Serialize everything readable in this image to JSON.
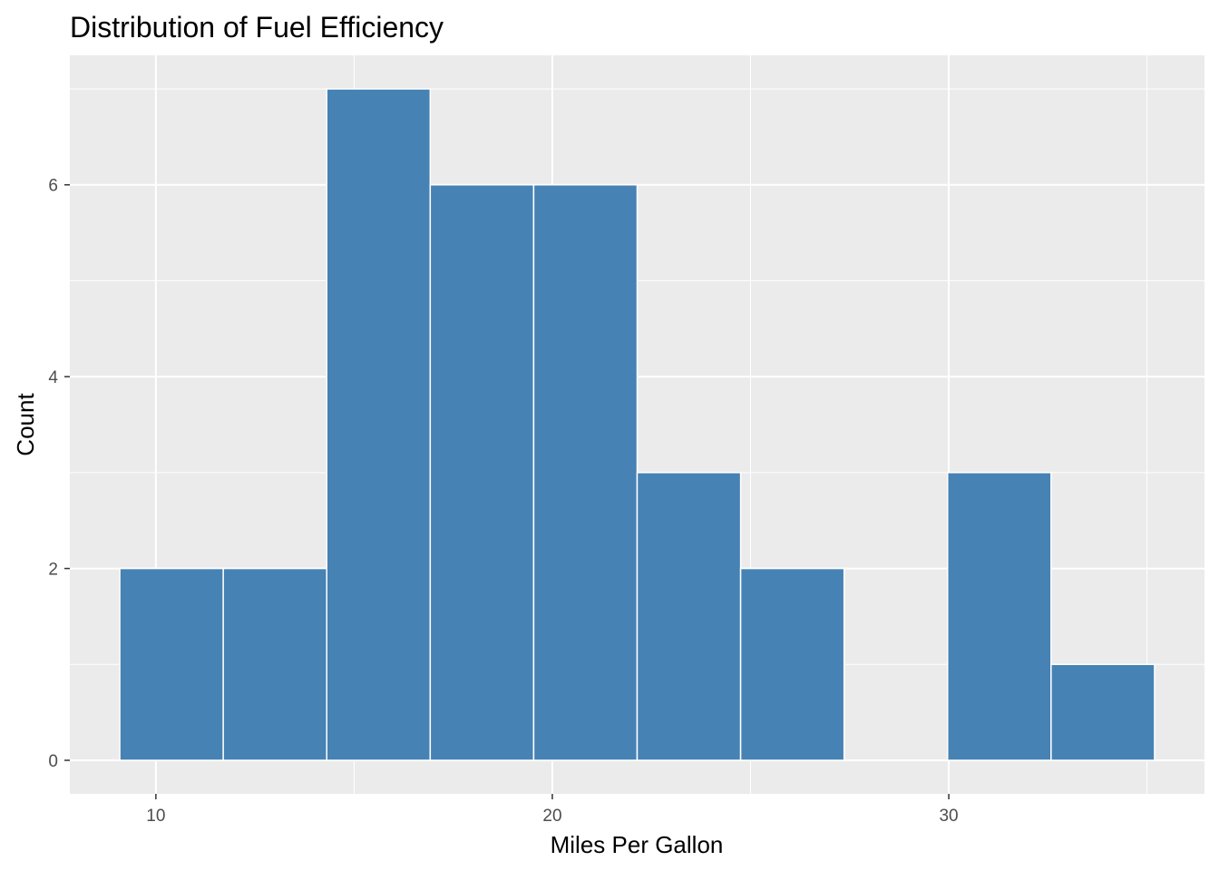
{
  "chart_data": {
    "type": "bar",
    "title": "Distribution of Fuel Efficiency",
    "xlabel": "Miles Per Gallon",
    "ylabel": "Count",
    "bins": [
      {
        "start": 9.09,
        "end": 11.7,
        "count": 2
      },
      {
        "start": 11.7,
        "end": 14.31,
        "count": 2
      },
      {
        "start": 14.31,
        "end": 16.92,
        "count": 7
      },
      {
        "start": 16.92,
        "end": 19.53,
        "count": 6
      },
      {
        "start": 19.53,
        "end": 22.14,
        "count": 6
      },
      {
        "start": 22.14,
        "end": 24.75,
        "count": 3
      },
      {
        "start": 24.75,
        "end": 27.36,
        "count": 2
      },
      {
        "start": 27.36,
        "end": 29.97,
        "count": 0
      },
      {
        "start": 29.97,
        "end": 32.58,
        "count": 3
      },
      {
        "start": 32.58,
        "end": 35.19,
        "count": 1
      }
    ],
    "xlim": [
      7.83,
      36.45
    ],
    "ylim": [
      -0.35,
      7.35
    ],
    "x_ticks": [
      10,
      20,
      30
    ],
    "x_minor_ticks": [
      15,
      25,
      35
    ],
    "y_ticks": [
      0,
      2,
      4,
      6
    ],
    "y_minor_ticks": [
      1,
      3,
      5,
      7
    ],
    "grid": true,
    "colors": {
      "bar_fill": "#4682B4",
      "bar_outline": "#FFFFFF",
      "panel_background": "#EBEBEB",
      "grid_line": "#FFFFFF"
    }
  }
}
